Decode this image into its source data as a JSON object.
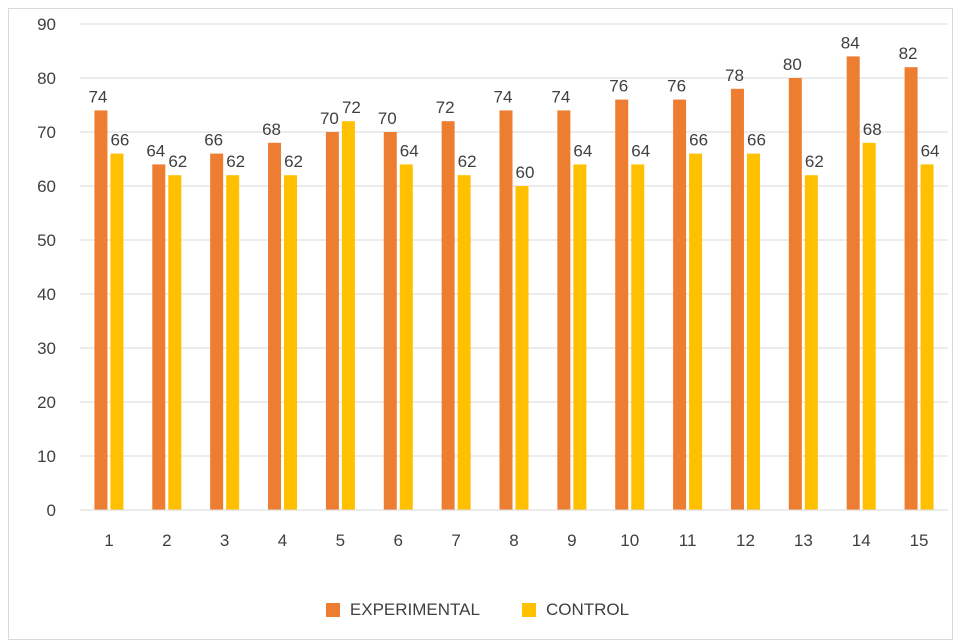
{
  "chart_data": {
    "type": "bar",
    "title": "",
    "xlabel": "",
    "ylabel": "",
    "ylim": [
      0,
      90
    ],
    "yticks": [
      0,
      10,
      20,
      30,
      40,
      50,
      60,
      70,
      80,
      90
    ],
    "grid": "horizontal",
    "legend_position": "bottom",
    "categories": [
      "1",
      "2",
      "3",
      "4",
      "5",
      "6",
      "7",
      "8",
      "9",
      "10",
      "11",
      "12",
      "13",
      "14",
      "15"
    ],
    "series": [
      {
        "name": "EXPERIMENTAL",
        "color": "#ED7D31",
        "values": [
          74,
          64,
          66,
          68,
          70,
          70,
          72,
          74,
          74,
          76,
          76,
          78,
          80,
          84,
          82
        ]
      },
      {
        "name": "CONTROL",
        "color": "#FFC000",
        "values": [
          66,
          62,
          62,
          62,
          72,
          64,
          62,
          60,
          64,
          64,
          66,
          66,
          62,
          68,
          64
        ]
      }
    ]
  }
}
